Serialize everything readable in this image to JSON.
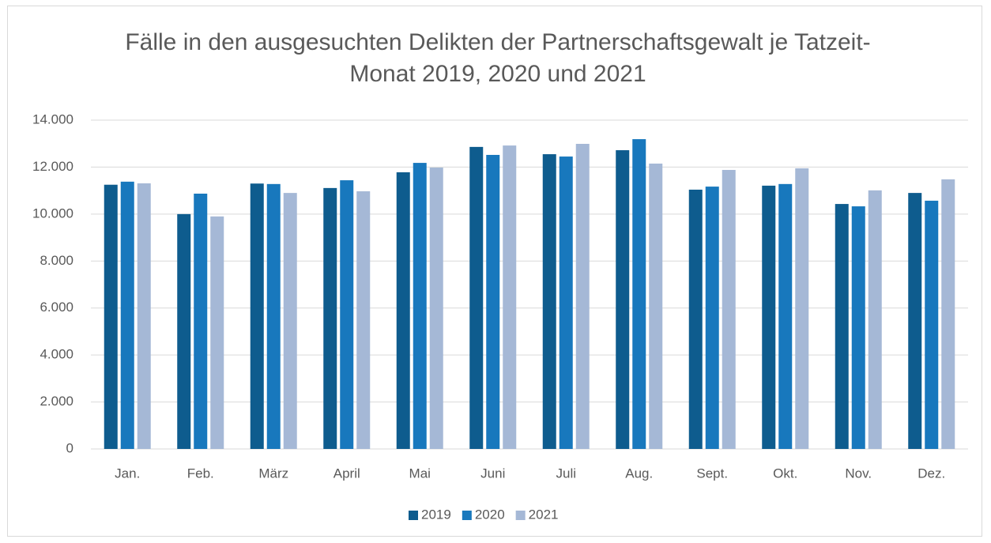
{
  "chart_data": {
    "type": "bar",
    "title": "Fälle in den ausgesuchten Delikten der Partnerschaftsgewalt je Tatzeit-Monat 2019, 2020 und 2021",
    "categories": [
      "Jan.",
      "Feb.",
      "März",
      "April",
      "Mai",
      "Juni",
      "Juli",
      "Aug.",
      "Sept.",
      "Okt.",
      "Nov.",
      "Dez."
    ],
    "series": [
      {
        "name": "2019",
        "color": "#0e5c8e",
        "values": [
          11250,
          10000,
          11300,
          11110,
          11780,
          12860,
          12550,
          12720,
          11040,
          11210,
          10430,
          10900
        ]
      },
      {
        "name": "2020",
        "color": "#1878bd",
        "values": [
          11380,
          10870,
          11280,
          11440,
          12180,
          12520,
          12450,
          13190,
          11170,
          11280,
          10330,
          10570
        ]
      },
      {
        "name": "2021",
        "color": "#a5b8d6",
        "values": [
          11310,
          9900,
          10900,
          10970,
          11980,
          12920,
          12990,
          12150,
          11880,
          11950,
          11010,
          11480
        ]
      }
    ],
    "ylim": [
      0,
      14000
    ],
    "yticks": [
      0,
      {
        "value": 2000,
        "label": "2.000"
      },
      {
        "value": 4000,
        "label": "4.000"
      },
      {
        "value": 6000,
        "label": "6.000"
      },
      {
        "value": 8000,
        "label": "8.000"
      },
      {
        "value": 10000,
        "label": "10.000"
      },
      {
        "value": 12000,
        "label": "12.000"
      },
      {
        "value": 14000,
        "label": "14.000"
      }
    ],
    "grid": true,
    "legend": "bottom"
  }
}
